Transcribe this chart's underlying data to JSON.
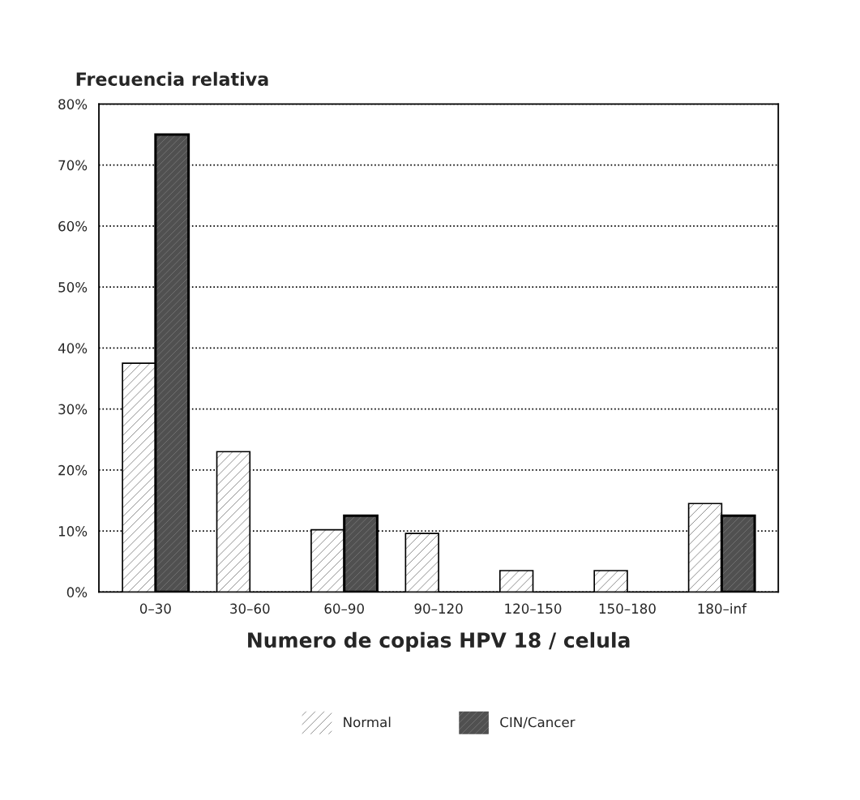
{
  "chart_data": {
    "type": "bar",
    "ylabel": "Frecuencia relativa",
    "xlabel": "Numero de copias HPV 18 / celula",
    "categories": [
      "0–30",
      "30–60",
      "60–90",
      "90–120",
      "120–150",
      "150–180",
      "180–inf"
    ],
    "series": [
      {
        "name": "Normal",
        "color": "#ffffff",
        "values": [
          37.5,
          23,
          10.2,
          9.6,
          3.5,
          3.5,
          14.5
        ]
      },
      {
        "name": "CIN/Cancer",
        "color": "#505050",
        "values": [
          75,
          null,
          12.5,
          null,
          null,
          null,
          12.5
        ]
      }
    ],
    "ylim": [
      0,
      80
    ],
    "yticks": [
      {
        "value": 0,
        "label": "0%"
      },
      {
        "value": 10,
        "label": "10%"
      },
      {
        "value": 20,
        "label": "20%"
      },
      {
        "value": 30,
        "label": "30%"
      },
      {
        "value": 40,
        "label": "40%"
      },
      {
        "value": 50,
        "label": "50%"
      },
      {
        "value": 60,
        "label": "60%"
      },
      {
        "value": 70,
        "label": "70%"
      },
      {
        "value": 80,
        "label": "80%"
      }
    ],
    "grid": "y",
    "legend": "bottom",
    "line_style": "dotted"
  }
}
